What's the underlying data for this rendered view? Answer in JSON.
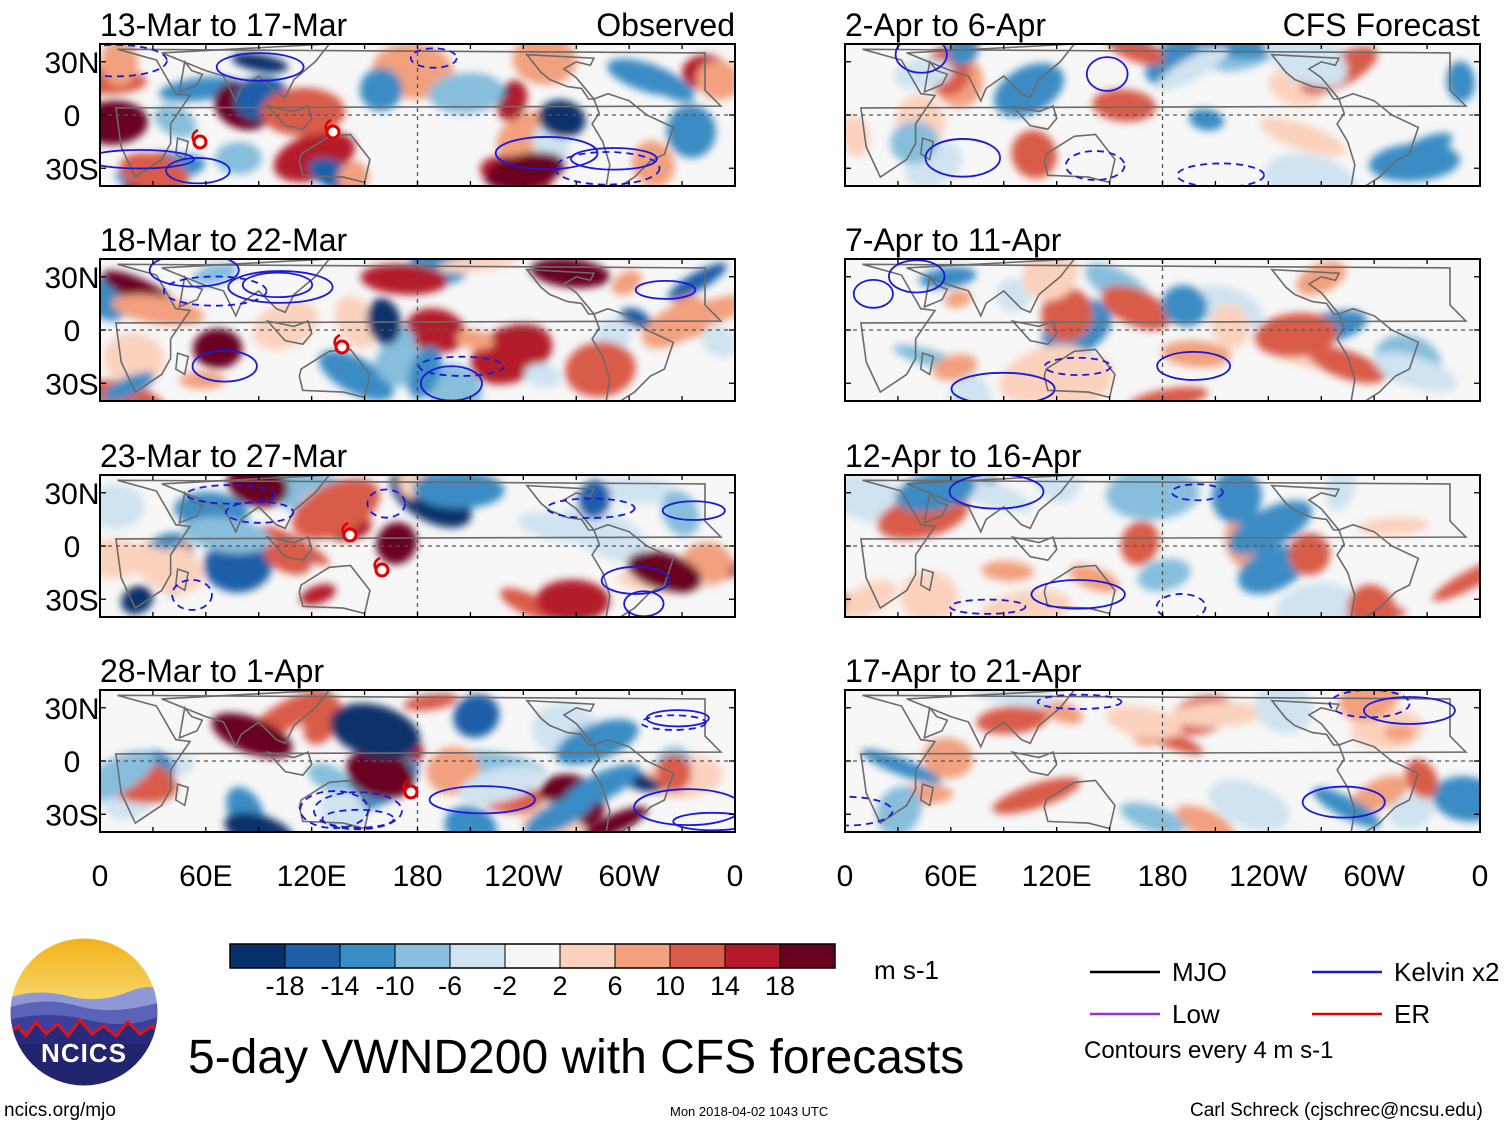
{
  "columns": [
    {
      "side": "left",
      "tag": "Observed",
      "periods": [
        "13-Mar to 17-Mar",
        "18-Mar to 22-Mar",
        "23-Mar to 27-Mar",
        "28-Mar to 1-Apr"
      ]
    },
    {
      "side": "right",
      "tag": "CFS Forecast",
      "periods": [
        "2-Apr to 6-Apr",
        "7-Apr to 11-Apr",
        "12-Apr to 16-Apr",
        "17-Apr to 21-Apr"
      ]
    }
  ],
  "lat_labels": [
    "30N",
    "0",
    "30S"
  ],
  "lon_labels": [
    "0",
    "60E",
    "120E",
    "180",
    "120W",
    "60W",
    "0"
  ],
  "colorbar": {
    "colors": [
      "#08306b",
      "#1f5fa8",
      "#3a8cc4",
      "#86bedc",
      "#cfe3f0",
      "#f7f7f7",
      "#fbd2bd",
      "#f2a07e",
      "#d95b4a",
      "#b41a2b",
      "#6a0020"
    ],
    "tick_labels": [
      "-18",
      "-14",
      "-10",
      "-6",
      "-2",
      "2",
      "6",
      "10",
      "14",
      "18"
    ],
    "units": "m s-1"
  },
  "legend": {
    "items": [
      {
        "label": "MJO",
        "color": "#000000"
      },
      {
        "label": "Kelvin x2",
        "color": "#1a1adb"
      },
      {
        "label": "Low",
        "color": "#9b30d0"
      },
      {
        "label": "ER",
        "color": "#e00000"
      }
    ],
    "note": "Contours every 4 m s-1"
  },
  "logo": {
    "text": "NCICS"
  },
  "title": "5-day VWND200 with CFS forecasts",
  "footer": {
    "url": "ncics.org/mjo",
    "timestamp": "Mon 2018-04-02 1043 UTC",
    "credit": "Carl Schreck (cjschrec@ncsu.edu)"
  }
}
